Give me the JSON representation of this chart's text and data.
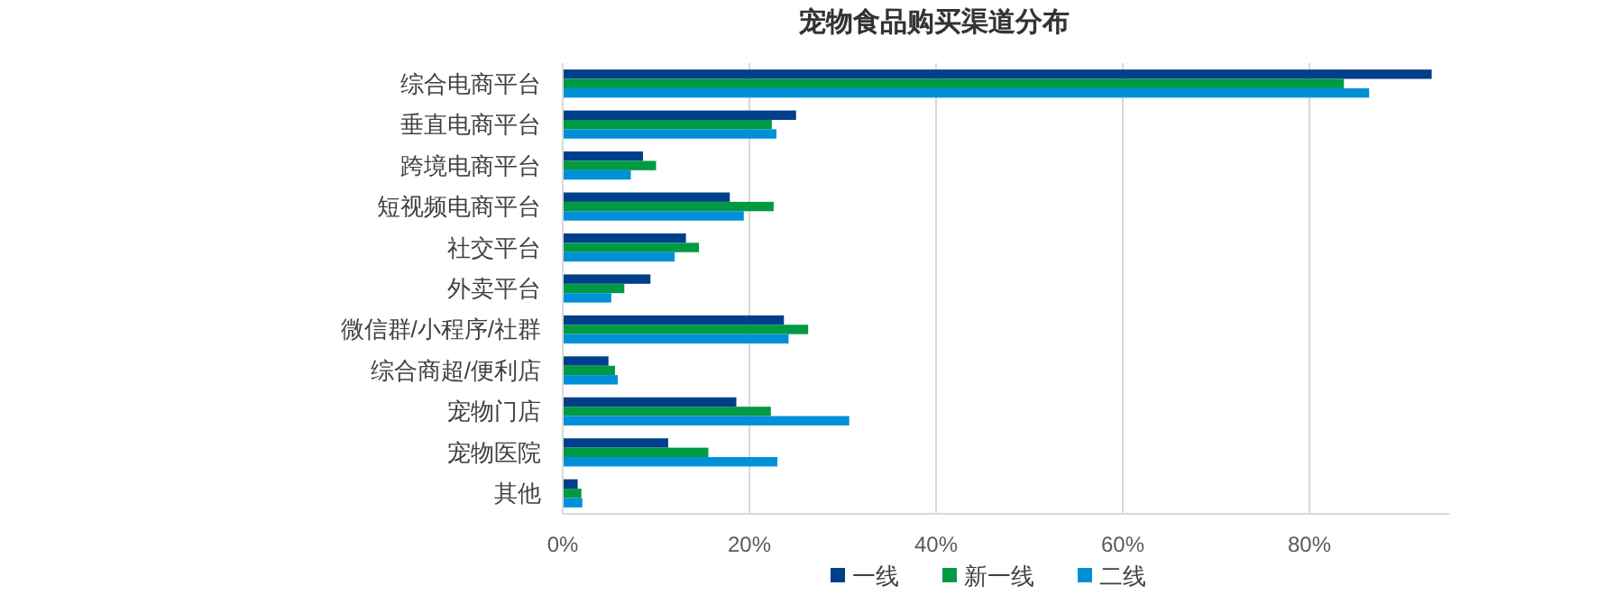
{
  "chart_data": {
    "type": "bar",
    "orientation": "horizontal",
    "title": "宠物食品购买渠道分布",
    "categories": [
      "综合电商平台",
      "垂直电商平台",
      "跨境电商平台",
      "短视频电商平台",
      "社交平台",
      "外卖平台",
      "微信群/小程序/社群",
      "综合商超/便利店",
      "宠物门店",
      "宠物医院",
      "其他"
    ],
    "series": [
      {
        "name": "一线",
        "color": "#003f8a",
        "values": [
          93.1,
          25.0,
          8.6,
          17.9,
          13.2,
          9.4,
          23.7,
          4.9,
          18.6,
          11.3,
          1.6
        ]
      },
      {
        "name": "新一线",
        "color": "#009a44",
        "values": [
          83.7,
          22.4,
          10.0,
          22.6,
          14.6,
          6.6,
          26.3,
          5.6,
          22.3,
          15.6,
          2.0
        ]
      },
      {
        "name": "二线",
        "color": "#0090d8",
        "values": [
          86.4,
          22.9,
          7.3,
          19.4,
          12.0,
          5.2,
          24.2,
          5.9,
          30.7,
          23.0,
          2.1
        ]
      }
    ],
    "xlim": [
      0,
      95
    ],
    "xticks": [
      {
        "value": 0,
        "label": "0%"
      },
      {
        "value": 20,
        "label": "20%"
      },
      {
        "value": 40,
        "label": "40%"
      },
      {
        "value": 60,
        "label": "60%"
      },
      {
        "value": 80,
        "label": "80%"
      }
    ],
    "grid": "x",
    "legend": "bottom"
  }
}
